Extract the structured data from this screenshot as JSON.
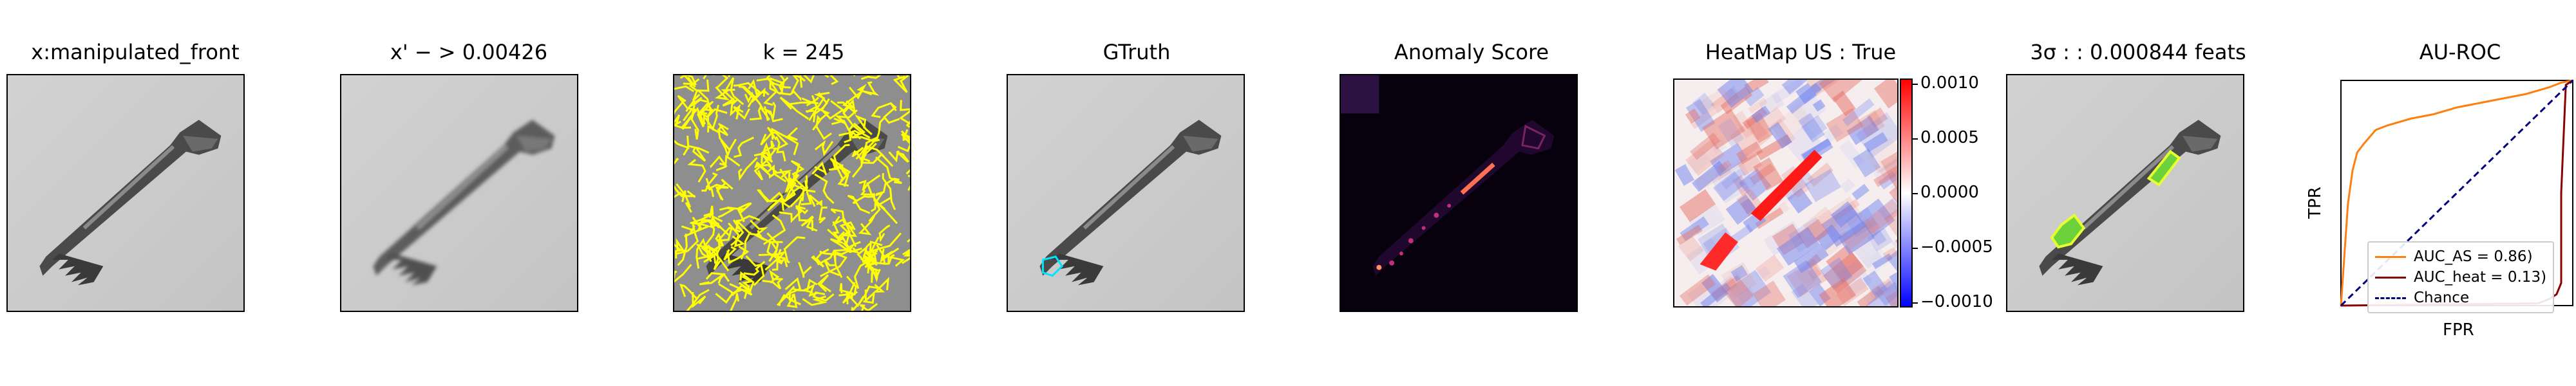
{
  "panels": [
    {
      "title": "x:manipulated_front"
    },
    {
      "title": "x' − > 0.00426"
    },
    {
      "title": "k = 245"
    },
    {
      "title": "GTruth"
    },
    {
      "title": "Anomaly Score"
    },
    {
      "title": "HeatMap US : True"
    },
    {
      "title": "3σ : : 0.000844 feats"
    },
    {
      "title": "AU-ROC"
    }
  ],
  "colorbar": {
    "ticks": [
      "0.0010",
      "0.0005",
      "0.0000",
      "−0.0005",
      "−0.0010"
    ],
    "values": [
      0.001,
      0.0005,
      0.0,
      -0.0005,
      -0.001
    ],
    "range": [
      -0.00105,
      0.00105
    ]
  },
  "chart_data": {
    "type": "line",
    "title": "AU-ROC",
    "xlabel": "FPR",
    "ylabel": "TPR",
    "xlim": [
      0,
      1
    ],
    "ylim": [
      0,
      1
    ],
    "legend_position": "lower-right",
    "series": [
      {
        "name": "AUC_AS = 0.86)",
        "color": "#ff7f0e",
        "x": [
          0,
          0.01,
          0.02,
          0.03,
          0.05,
          0.07,
          0.1,
          0.15,
          0.2,
          0.3,
          0.4,
          0.5,
          0.6,
          0.7,
          0.8,
          0.9,
          0.95,
          1.0
        ],
        "y": [
          0,
          0.15,
          0.3,
          0.45,
          0.6,
          0.68,
          0.72,
          0.78,
          0.8,
          0.83,
          0.85,
          0.88,
          0.9,
          0.92,
          0.94,
          0.97,
          0.99,
          1.0
        ]
      },
      {
        "name": "AUC_heat = 0.13)",
        "color": "#8b0000",
        "x": [
          0,
          0.85,
          0.9,
          0.93,
          0.95,
          0.95,
          0.97,
          1.0
        ],
        "y": [
          0,
          0.01,
          0.03,
          0.05,
          0.1,
          0.5,
          0.98,
          1.0
        ]
      },
      {
        "name": "Chance",
        "color": "#000080",
        "dashed": true,
        "x": [
          0,
          1
        ],
        "y": [
          0,
          1
        ]
      }
    ]
  }
}
